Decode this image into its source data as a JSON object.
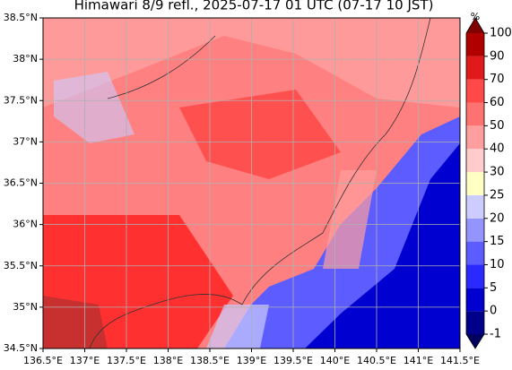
{
  "map": {
    "title": "Himawari 8/9 refl., 2025-07-17 01 UTC (07-17 10 JST)",
    "xlim": [
      136.5,
      141.5
    ],
    "ylim": [
      34.5,
      38.5
    ],
    "xticks": [
      {
        "value": 136.5,
        "label": "136.5°E"
      },
      {
        "value": 137,
        "label": "137°E"
      },
      {
        "value": 137.5,
        "label": "137.5°E"
      },
      {
        "value": 138,
        "label": "138°E"
      },
      {
        "value": 138.5,
        "label": "138.5°E"
      },
      {
        "value": 139,
        "label": "139°E"
      },
      {
        "value": 139.5,
        "label": "139.5°E"
      },
      {
        "value": 140,
        "label": "140°E"
      },
      {
        "value": 140.5,
        "label": "140.5°E"
      },
      {
        "value": 141,
        "label": "141°E"
      },
      {
        "value": 141.5,
        "label": "141.5°E"
      }
    ],
    "yticks": [
      {
        "value": 34.5,
        "label": "34.5°N"
      },
      {
        "value": 35,
        "label": "35°N"
      },
      {
        "value": 35.5,
        "label": "35.5°N"
      },
      {
        "value": 36,
        "label": "36°N"
      },
      {
        "value": 36.5,
        "label": "36.5°N"
      },
      {
        "value": 37,
        "label": "37°N"
      },
      {
        "value": 37.5,
        "label": "37.5°N"
      },
      {
        "value": 38,
        "label": "38°N"
      },
      {
        "value": 38.5,
        "label": "38.5°N"
      }
    ],
    "grid": true,
    "colorbar": {
      "unit": "%",
      "ticks": [
        -1,
        0,
        5,
        10,
        15,
        20,
        25,
        30,
        40,
        50,
        60,
        70,
        90,
        100
      ],
      "colors": [
        "#00008b",
        "#0000d0",
        "#2a2aff",
        "#5c5cff",
        "#9494ff",
        "#ccccff",
        "#ffffc4",
        "#ffcccc",
        "#ff9e9e",
        "#ff7272",
        "#ff4848",
        "#e01a1a",
        "#b00000"
      ],
      "under_color": "#000060",
      "over_color": "#800000"
    }
  }
}
